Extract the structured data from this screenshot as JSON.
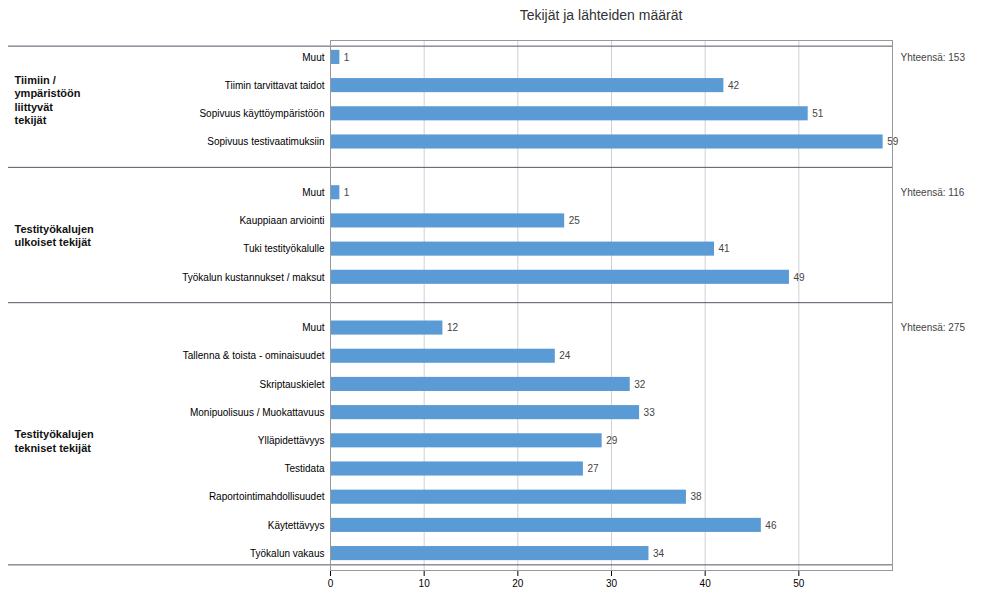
{
  "chart_data": {
    "type": "bar",
    "orientation": "horizontal",
    "title": "Tekijät ja lähteiden määrät",
    "color": "#5b9bd5",
    "groups": [
      {
        "name": "Tiimiin /\nympäristöön\nliittyvät\ntekijät",
        "annotation": "Yhteensä: 153",
        "categories": [
          "Muut",
          "Tiimin tarvittavat taidot",
          "Sopivuus käyttöympäristöön",
          "Sopivuus testivaatimuksiin"
        ],
        "values": [
          1,
          42,
          51,
          59
        ]
      },
      {
        "name": "Testityökalujen\nulkoiset tekijät",
        "annotation": "Yhteensä: 116",
        "categories": [
          "Muut",
          "Kauppiaan arviointi",
          "Tuki testityökalulle",
          "Työkalun kustannukset / maksut"
        ],
        "values": [
          1,
          25,
          41,
          49
        ]
      },
      {
        "name": "Testityökalujen\ntekniset tekijät",
        "annotation": "Yhteensä: 275",
        "categories": [
          "Muut",
          "Tallenna & toista - ominaisuudet",
          "Skriptauskielet",
          "Monipuolisuus / Muokattavuus",
          "Ylläpidettävyys",
          "Testidata",
          "Raportointimahdollisuudet",
          "Käytettävyys",
          "Työkalun vakaus"
        ],
        "values": [
          12,
          24,
          32,
          33,
          29,
          27,
          38,
          46,
          34
        ]
      }
    ],
    "xlim": [
      0,
      60
    ],
    "xticks": [
      0,
      10,
      20,
      30,
      40,
      50
    ],
    "grid": true,
    "data_labels": true
  }
}
